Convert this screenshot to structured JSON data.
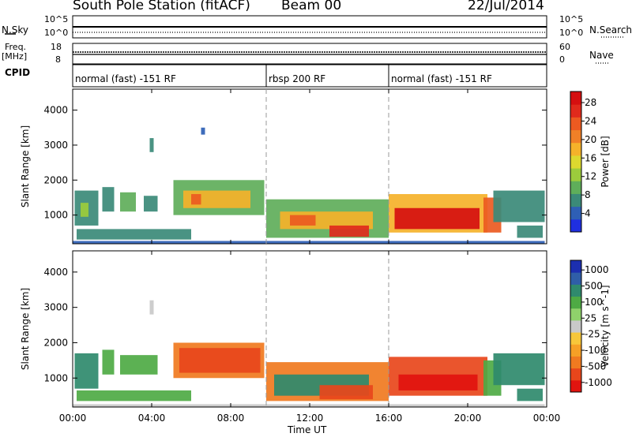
{
  "header": {
    "station": "South Pole Station (fitACF)",
    "beam": "Beam 00",
    "date": "22/Jul/2014"
  },
  "left_labels": {
    "nsky": "N.Sky",
    "freq": "Freq.",
    "mhz": "[MHz]",
    "cpid": "CPID"
  },
  "right_labels": {
    "nsearch": "N.Search",
    "nave": "Nave"
  },
  "noise_axis": {
    "left_top": "10^5",
    "left_bottom": "10^0",
    "right_top": "10^5",
    "right_bottom": "10^0"
  },
  "freq_axis": {
    "left_top": "18",
    "left_bottom": "8",
    "right_top": "60",
    "right_bottom": "0"
  },
  "cpid_segments": [
    {
      "label": "normal (fast) -151 RF",
      "start_hour": 0,
      "end_hour": 9.8
    },
    {
      "label": "rbsp 200 RF",
      "start_hour": 9.8,
      "end_hour": 16.0
    },
    {
      "label": "normal (fast) -151 RF",
      "start_hour": 16.0,
      "end_hour": 24
    }
  ],
  "x_axis": {
    "label": "Time UT",
    "ticks": [
      "00:00",
      "04:00",
      "08:00",
      "12:00",
      "16:00",
      "20:00",
      "00:00"
    ],
    "tick_hours": [
      0,
      4,
      8,
      12,
      16,
      20,
      24
    ]
  },
  "chart_data": [
    {
      "type": "heatmap",
      "quantity": "Power",
      "colorbar_label": "Power [dB]",
      "ylabel": "Slant Range [km]",
      "ylim": [
        180,
        4600
      ],
      "yticks": [
        1000,
        2000,
        3000,
        4000
      ],
      "colorbar_ticks": [
        "4",
        "8",
        "12",
        "16",
        "20",
        "24",
        "28"
      ],
      "colorbar_colors": [
        "#1f2fe0",
        "#2e5fb5",
        "#3b8a78",
        "#5fae5a",
        "#9ccc3c",
        "#ddd92f",
        "#f5b22a",
        "#f08027",
        "#ec5a21",
        "#e02a1c",
        "#d50f10"
      ],
      "cells": [
        {
          "t0": 0.1,
          "t1": 1.3,
          "r0": 700,
          "r1": 1700,
          "level": 2
        },
        {
          "t0": 0.4,
          "t1": 0.8,
          "r0": 950,
          "r1": 1350,
          "level": 4
        },
        {
          "t0": 1.5,
          "t1": 2.1,
          "r0": 1100,
          "r1": 1800,
          "level": 2
        },
        {
          "t0": 2.4,
          "t1": 3.2,
          "r0": 1100,
          "r1": 1650,
          "level": 3
        },
        {
          "t0": 3.6,
          "t1": 4.3,
          "r0": 1100,
          "r1": 1550,
          "level": 2
        },
        {
          "t0": 5.1,
          "t1": 9.7,
          "r0": 1000,
          "r1": 2000,
          "level": 3
        },
        {
          "t0": 5.6,
          "t1": 9.0,
          "r0": 1200,
          "r1": 1700,
          "level": 6
        },
        {
          "t0": 6.0,
          "t1": 6.5,
          "r0": 1300,
          "r1": 1600,
          "level": 8
        },
        {
          "t0": 0.2,
          "t1": 6.0,
          "r0": 300,
          "r1": 600,
          "level": 2
        },
        {
          "t0": 9.8,
          "t1": 16.0,
          "r0": 350,
          "r1": 1450,
          "level": 3
        },
        {
          "t0": 10.5,
          "t1": 15.2,
          "r0": 600,
          "r1": 1100,
          "level": 6
        },
        {
          "t0": 11.0,
          "t1": 12.3,
          "r0": 700,
          "r1": 1000,
          "level": 8
        },
        {
          "t0": 13.0,
          "t1": 15.0,
          "r0": 380,
          "r1": 700,
          "level": 9
        },
        {
          "t0": 16.0,
          "t1": 21.0,
          "r0": 500,
          "r1": 1600,
          "level": 6
        },
        {
          "t0": 16.3,
          "t1": 20.6,
          "r0": 600,
          "r1": 1200,
          "level": 10
        },
        {
          "t0": 20.8,
          "t1": 21.7,
          "r0": 500,
          "r1": 1500,
          "level": 8
        },
        {
          "t0": 21.3,
          "t1": 23.9,
          "r0": 800,
          "r1": 1700,
          "level": 2
        },
        {
          "t0": 22.5,
          "t1": 23.8,
          "r0": 350,
          "r1": 700,
          "level": 2
        },
        {
          "t0": 3.9,
          "t1": 4.1,
          "r0": 2800,
          "r1": 3200,
          "level": 2
        },
        {
          "t0": 6.5,
          "t1": 6.7,
          "r0": 3300,
          "r1": 3500,
          "level": 1
        },
        {
          "t0": 0.0,
          "t1": 23.9,
          "r0": 190,
          "r1": 260,
          "level": 1
        }
      ]
    },
    {
      "type": "heatmap",
      "quantity": "Velocity",
      "colorbar_label": "Velocity [m s^-1]",
      "ylabel": "Slant Range [km]",
      "ylim": [
        180,
        4600
      ],
      "yticks": [
        1000,
        2000,
        3000,
        4000
      ],
      "colorbar_ticks": [
        "1000",
        "500",
        "100",
        "25",
        "-25",
        "-100",
        "-500",
        "-1000"
      ],
      "colorbar_colors": [
        "#1c2fb0",
        "#2f5ea8",
        "#2f8a6d",
        "#4eaa44",
        "#8fd16b",
        "#c9c9c9",
        "#f7c73a",
        "#f6a026",
        "#f07a20",
        "#e8461b",
        "#e1140f"
      ],
      "cells": [
        {
          "t0": 0.1,
          "t1": 1.3,
          "r0": 700,
          "r1": 1700,
          "level": 2
        },
        {
          "t0": 1.5,
          "t1": 2.1,
          "r0": 1100,
          "r1": 1800,
          "level": 3
        },
        {
          "t0": 2.4,
          "t1": 4.3,
          "r0": 1100,
          "r1": 1650,
          "level": 3
        },
        {
          "t0": 0.2,
          "t1": 6.0,
          "r0": 350,
          "r1": 650,
          "level": 3
        },
        {
          "t0": 5.1,
          "t1": 9.7,
          "r0": 1000,
          "r1": 2000,
          "level": 8
        },
        {
          "t0": 5.4,
          "t1": 9.5,
          "r0": 1150,
          "r1": 1850,
          "level": 9
        },
        {
          "t0": 9.8,
          "t1": 16.0,
          "r0": 350,
          "r1": 1450,
          "level": 8
        },
        {
          "t0": 10.2,
          "t1": 15.0,
          "r0": 500,
          "r1": 1100,
          "level": 2
        },
        {
          "t0": 12.5,
          "t1": 15.2,
          "r0": 400,
          "r1": 800,
          "level": 9
        },
        {
          "t0": 16.0,
          "t1": 21.0,
          "r0": 500,
          "r1": 1600,
          "level": 9
        },
        {
          "t0": 16.5,
          "t1": 20.5,
          "r0": 650,
          "r1": 1100,
          "level": 10
        },
        {
          "t0": 20.8,
          "t1": 21.7,
          "r0": 500,
          "r1": 1500,
          "level": 3
        },
        {
          "t0": 21.3,
          "t1": 23.9,
          "r0": 800,
          "r1": 1700,
          "level": 2
        },
        {
          "t0": 22.5,
          "t1": 23.8,
          "r0": 350,
          "r1": 700,
          "level": 2
        },
        {
          "t0": 3.9,
          "t1": 4.1,
          "r0": 2800,
          "r1": 3200,
          "level": 5
        },
        {
          "t0": 0.0,
          "t1": 23.9,
          "r0": 190,
          "r1": 260,
          "level": 5
        }
      ]
    }
  ]
}
